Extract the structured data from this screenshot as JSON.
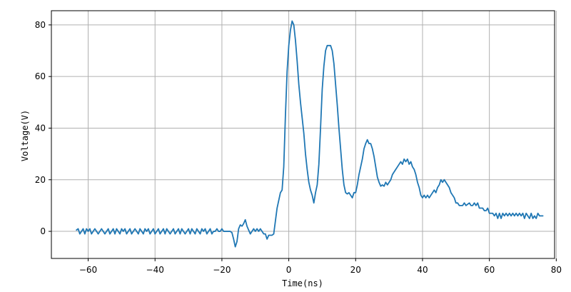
{
  "chart_data": {
    "type": "line",
    "xlabel": "Time(ns)",
    "ylabel": "Voltage(V)",
    "xlim": [
      -71,
      79.5
    ],
    "ylim": [
      -10.5,
      85.5
    ],
    "xticks": [
      -60,
      -40,
      -20,
      0,
      20,
      40,
      60,
      80
    ],
    "yticks": [
      0,
      20,
      40,
      60,
      80
    ],
    "grid": true,
    "colors": {
      "line": "#1f77b4",
      "grid": "#b0b0b0",
      "frame": "#000000"
    },
    "series": [
      {
        "color": "#1f77b4",
        "points": [
          [
            -63.5,
            0.5
          ],
          [
            -63.0,
            1.0
          ],
          [
            -62.5,
            -1.0
          ],
          [
            -62.0,
            0.0
          ],
          [
            -61.5,
            1.0
          ],
          [
            -61.0,
            -1.0
          ],
          [
            -60.5,
            1.0
          ],
          [
            -60.0,
            0.0
          ],
          [
            -59.5,
            1.0
          ],
          [
            -59.0,
            -1.0
          ],
          [
            -58.5,
            0.0
          ],
          [
            -58.0,
            1.0
          ],
          [
            -57.5,
            0.0
          ],
          [
            -57.0,
            -1.0
          ],
          [
            -56.5,
            0.0
          ],
          [
            -56.0,
            1.0
          ],
          [
            -55.5,
            0.0
          ],
          [
            -55.0,
            -1.0
          ],
          [
            -54.5,
            0.0
          ],
          [
            -54.0,
            1.0
          ],
          [
            -53.5,
            -1.0
          ],
          [
            -53.0,
            0.0
          ],
          [
            -52.5,
            1.0
          ],
          [
            -52.0,
            -1.0
          ],
          [
            -51.5,
            1.0
          ],
          [
            -51.0,
            0.0
          ],
          [
            -50.5,
            -1.0
          ],
          [
            -50.0,
            1.0
          ],
          [
            -49.5,
            0.0
          ],
          [
            -49.0,
            1.0
          ],
          [
            -48.5,
            -1.0
          ],
          [
            -48.0,
            0.0
          ],
          [
            -47.5,
            1.0
          ],
          [
            -47.0,
            -1.0
          ],
          [
            -46.5,
            0.0
          ],
          [
            -46.0,
            1.0
          ],
          [
            -45.5,
            0.0
          ],
          [
            -45.0,
            -1.0
          ],
          [
            -44.5,
            1.0
          ],
          [
            -44.0,
            0.0
          ],
          [
            -43.5,
            -1.0
          ],
          [
            -43.0,
            1.0
          ],
          [
            -42.5,
            0.0
          ],
          [
            -42.0,
            1.0
          ],
          [
            -41.5,
            -1.0
          ],
          [
            -41.0,
            0.0
          ],
          [
            -40.5,
            1.0
          ],
          [
            -40.0,
            -1.0
          ],
          [
            -39.5,
            0.0
          ],
          [
            -39.0,
            1.0
          ],
          [
            -38.5,
            -1.0
          ],
          [
            -38.0,
            0.0
          ],
          [
            -37.5,
            1.0
          ],
          [
            -37.0,
            -1.0
          ],
          [
            -36.5,
            1.0
          ],
          [
            -36.0,
            0.0
          ],
          [
            -35.5,
            -1.0
          ],
          [
            -35.0,
            0.0
          ],
          [
            -34.5,
            1.0
          ],
          [
            -34.0,
            -1.0
          ],
          [
            -33.5,
            0.0
          ],
          [
            -33.0,
            1.0
          ],
          [
            -32.5,
            -1.0
          ],
          [
            -32.0,
            1.0
          ],
          [
            -31.5,
            0.0
          ],
          [
            -31.0,
            -1.0
          ],
          [
            -30.5,
            0.0
          ],
          [
            -30.0,
            1.0
          ],
          [
            -29.5,
            -1.0
          ],
          [
            -29.0,
            1.0
          ],
          [
            -28.5,
            0.0
          ],
          [
            -28.0,
            -1.0
          ],
          [
            -27.5,
            1.0
          ],
          [
            -27.0,
            0.0
          ],
          [
            -26.5,
            -1.0
          ],
          [
            -26.0,
            1.0
          ],
          [
            -25.5,
            0.0
          ],
          [
            -25.0,
            1.0
          ],
          [
            -24.5,
            -1.0
          ],
          [
            -24.0,
            0.0
          ],
          [
            -23.5,
            1.0
          ],
          [
            -23.0,
            -1.0
          ],
          [
            -22.5,
            0.0
          ],
          [
            -22.0,
            0.0
          ],
          [
            -21.5,
            1.0
          ],
          [
            -21.0,
            0.0
          ],
          [
            -20.5,
            0.0
          ],
          [
            -20.0,
            1.0
          ],
          [
            -19.5,
            0.0
          ],
          [
            -19.0,
            0.0
          ],
          [
            -18.5,
            0.0
          ],
          [
            -18.0,
            0.0
          ],
          [
            -17.5,
            0.0
          ],
          [
            -17.0,
            -0.5
          ],
          [
            -16.5,
            -3.0
          ],
          [
            -16.0,
            -6.0
          ],
          [
            -15.5,
            -4.0
          ],
          [
            -15.0,
            1.0
          ],
          [
            -14.5,
            2.5
          ],
          [
            -14.0,
            2.0
          ],
          [
            -13.5,
            3.0
          ],
          [
            -13.0,
            4.5
          ],
          [
            -12.5,
            2.0
          ],
          [
            -12.0,
            0.5
          ],
          [
            -11.5,
            -1.0
          ],
          [
            -11.0,
            0.0
          ],
          [
            -10.5,
            1.0
          ],
          [
            -10.0,
            0.0
          ],
          [
            -9.5,
            1.0
          ],
          [
            -9.0,
            0.0
          ],
          [
            -8.5,
            1.0
          ],
          [
            -8.0,
            0.0
          ],
          [
            -7.5,
            -1.0
          ],
          [
            -7.0,
            -1.0
          ],
          [
            -6.5,
            -3.0
          ],
          [
            -6.0,
            -1.5
          ],
          [
            -5.5,
            -1.5
          ],
          [
            -5.0,
            -1.5
          ],
          [
            -4.5,
            -1.0
          ],
          [
            -4.0,
            4.0
          ],
          [
            -3.5,
            9.0
          ],
          [
            -3.0,
            12.0
          ],
          [
            -2.5,
            15.0
          ],
          [
            -2.0,
            16.0
          ],
          [
            -1.5,
            25.0
          ],
          [
            -1.0,
            45.0
          ],
          [
            -0.5,
            62.0
          ],
          [
            0.0,
            72.0
          ],
          [
            0.5,
            78.0
          ],
          [
            1.0,
            81.5
          ],
          [
            1.5,
            80.0
          ],
          [
            2.0,
            74.0
          ],
          [
            2.5,
            66.0
          ],
          [
            3.0,
            57.0
          ],
          [
            3.5,
            50.0
          ],
          [
            4.0,
            44.0
          ],
          [
            4.5,
            38.0
          ],
          [
            5.0,
            30.0
          ],
          [
            5.5,
            24.0
          ],
          [
            6.0,
            19.0
          ],
          [
            6.5,
            16.0
          ],
          [
            7.0,
            14.0
          ],
          [
            7.5,
            11.0
          ],
          [
            8.0,
            15.0
          ],
          [
            8.5,
            18.0
          ],
          [
            9.0,
            26.0
          ],
          [
            9.5,
            40.0
          ],
          [
            10.0,
            55.0
          ],
          [
            10.5,
            64.0
          ],
          [
            11.0,
            70.0
          ],
          [
            11.5,
            72.0
          ],
          [
            12.0,
            72.0
          ],
          [
            12.5,
            72.0
          ],
          [
            13.0,
            70.0
          ],
          [
            13.5,
            65.0
          ],
          [
            14.0,
            57.0
          ],
          [
            14.5,
            49.0
          ],
          [
            15.0,
            40.0
          ],
          [
            15.5,
            32.0
          ],
          [
            16.0,
            24.0
          ],
          [
            16.5,
            18.0
          ],
          [
            17.0,
            15.0
          ],
          [
            17.5,
            14.5
          ],
          [
            18.0,
            15.0
          ],
          [
            18.5,
            14.0
          ],
          [
            19.0,
            13.0
          ],
          [
            19.5,
            15.0
          ],
          [
            20.0,
            15.0
          ],
          [
            20.5,
            18.0
          ],
          [
            21.0,
            22.0
          ],
          [
            21.5,
            25.0
          ],
          [
            22.0,
            28.0
          ],
          [
            22.5,
            32.0
          ],
          [
            23.0,
            34.0
          ],
          [
            23.5,
            35.5
          ],
          [
            24.0,
            34.0
          ],
          [
            24.5,
            34.0
          ],
          [
            25.0,
            32.0
          ],
          [
            25.5,
            29.0
          ],
          [
            26.0,
            25.0
          ],
          [
            26.5,
            21.0
          ],
          [
            27.0,
            19.0
          ],
          [
            27.5,
            17.5
          ],
          [
            28.0,
            18.0
          ],
          [
            28.5,
            17.5
          ],
          [
            29.0,
            19.0
          ],
          [
            29.5,
            18.0
          ],
          [
            30.0,
            19.0
          ],
          [
            30.5,
            20.0
          ],
          [
            31.0,
            22.0
          ],
          [
            31.5,
            23.0
          ],
          [
            32.0,
            24.0
          ],
          [
            32.5,
            25.0
          ],
          [
            33.0,
            26.0
          ],
          [
            33.5,
            27.0
          ],
          [
            34.0,
            26.0
          ],
          [
            34.5,
            28.0
          ],
          [
            35.0,
            27.0
          ],
          [
            35.5,
            28.0
          ],
          [
            36.0,
            26.0
          ],
          [
            36.5,
            27.0
          ],
          [
            37.0,
            25.0
          ],
          [
            37.5,
            24.0
          ],
          [
            38.0,
            22.0
          ],
          [
            38.5,
            19.0
          ],
          [
            39.0,
            17.0
          ],
          [
            39.5,
            14.0
          ],
          [
            40.0,
            13.0
          ],
          [
            40.5,
            14.0
          ],
          [
            41.0,
            13.0
          ],
          [
            41.5,
            14.0
          ],
          [
            42.0,
            13.0
          ],
          [
            42.5,
            14.0
          ],
          [
            43.0,
            15.0
          ],
          [
            43.5,
            16.0
          ],
          [
            44.0,
            15.0
          ],
          [
            44.5,
            17.0
          ],
          [
            45.0,
            18.0
          ],
          [
            45.5,
            20.0
          ],
          [
            46.0,
            19.0
          ],
          [
            46.5,
            20.0
          ],
          [
            47.0,
            19.0
          ],
          [
            47.5,
            18.0
          ],
          [
            48.0,
            17.0
          ],
          [
            48.5,
            15.0
          ],
          [
            49.0,
            14.0
          ],
          [
            49.5,
            13.0
          ],
          [
            50.0,
            11.0
          ],
          [
            50.5,
            11.0
          ],
          [
            51.0,
            10.0
          ],
          [
            52.0,
            10.0
          ],
          [
            52.5,
            11.0
          ],
          [
            53.0,
            10.0
          ],
          [
            54.0,
            11.0
          ],
          [
            54.5,
            10.0
          ],
          [
            55.0,
            10.0
          ],
          [
            55.5,
            11.0
          ],
          [
            56.0,
            10.0
          ],
          [
            56.5,
            11.0
          ],
          [
            57.0,
            9.0
          ],
          [
            58.0,
            9.0
          ],
          [
            58.5,
            8.0
          ],
          [
            59.0,
            8.0
          ],
          [
            59.5,
            9.0
          ],
          [
            60.0,
            7.0
          ],
          [
            61.0,
            7.0
          ],
          [
            61.5,
            6.0
          ],
          [
            62.0,
            7.0
          ],
          [
            62.5,
            5.0
          ],
          [
            63.0,
            7.0
          ],
          [
            63.5,
            5.0
          ],
          [
            64.0,
            7.0
          ],
          [
            64.5,
            6.0
          ],
          [
            65.0,
            7.0
          ],
          [
            65.5,
            6.0
          ],
          [
            66.0,
            7.0
          ],
          [
            66.5,
            6.0
          ],
          [
            67.0,
            7.0
          ],
          [
            67.5,
            6.0
          ],
          [
            68.0,
            7.0
          ],
          [
            68.5,
            6.0
          ],
          [
            69.0,
            7.0
          ],
          [
            69.5,
            6.0
          ],
          [
            70.0,
            7.0
          ],
          [
            70.5,
            5.0
          ],
          [
            71.0,
            7.0
          ],
          [
            71.5,
            6.0
          ],
          [
            72.0,
            5.0
          ],
          [
            72.5,
            7.0
          ],
          [
            73.0,
            5.0
          ],
          [
            73.5,
            6.0
          ],
          [
            74.0,
            5.0
          ],
          [
            74.5,
            7.0
          ],
          [
            75.0,
            6.0
          ],
          [
            75.5,
            6.0
          ],
          [
            76.0,
            6.0
          ]
        ]
      }
    ]
  }
}
